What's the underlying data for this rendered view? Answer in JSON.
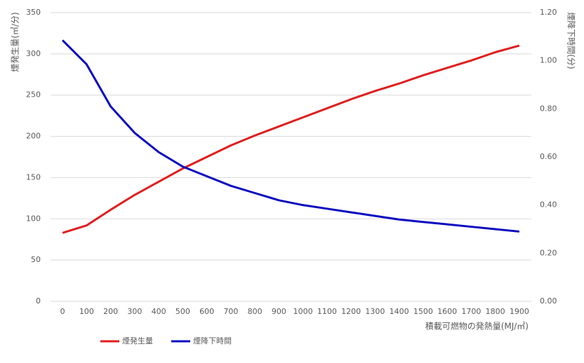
{
  "chart_data": {
    "type": "line",
    "x_label": "積載可燃物の発熱量(MJ/㎡)",
    "y_label": "煙発生量(㎥/分)",
    "y2_label": "煙降下時間(分)",
    "categories": [
      "0",
      "100",
      "200",
      "300",
      "400",
      "500",
      "600",
      "700",
      "800",
      "900",
      "1000",
      "1100",
      "1200",
      "1300",
      "1400",
      "1500",
      "1600",
      "1700",
      "1800",
      "1900"
    ],
    "series": [
      {
        "name": "煙発生量",
        "color": "#e01e1e",
        "values": [
          83,
          92,
          111,
          129,
          145,
          161,
          175,
          189,
          201,
          212,
          223,
          234,
          245,
          255,
          264,
          274,
          283,
          292,
          302,
          310
        ]
      },
      {
        "name": "煙降下時間",
        "color": "#0a0ac0",
        "axis": "y2",
        "values": [
          1.085,
          0.985,
          0.81,
          0.7,
          0.62,
          0.56,
          0.52,
          0.48,
          0.45,
          0.42,
          0.4,
          0.385,
          0.37,
          0.355,
          0.34,
          0.33,
          0.32,
          0.31,
          0.3,
          0.29
        ]
      }
    ],
    "ylim": [
      0,
      350
    ],
    "yticks": [
      0,
      50,
      100,
      150,
      200,
      250,
      300,
      350
    ],
    "y2lim": [
      0,
      1.2
    ],
    "y2ticks": [
      {
        "value": 0,
        "label": "0.00"
      },
      {
        "value": 0.2,
        "label": "0.20"
      },
      {
        "value": 0.4,
        "label": "0.40"
      },
      {
        "value": 0.6,
        "label": "0.60"
      },
      {
        "value": 0.8,
        "label": "0.80"
      },
      {
        "value": 1.0,
        "label": "1.00"
      },
      {
        "value": 1.2,
        "label": "1.20"
      }
    ],
    "grid": true,
    "legend": "bottom-left"
  }
}
